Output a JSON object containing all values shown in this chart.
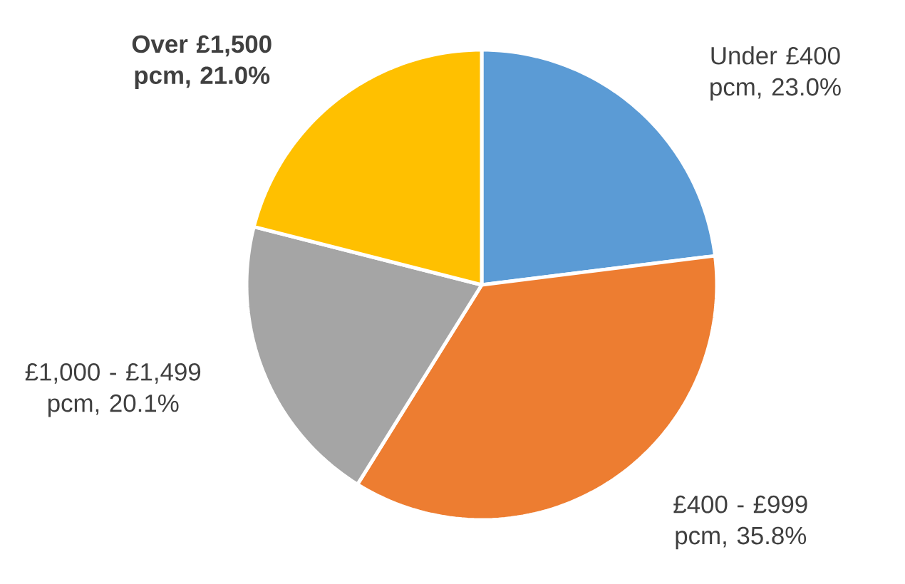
{
  "chart_data": {
    "type": "pie",
    "categories": [
      null,
      null,
      null,
      null
    ],
    "values": [
      23.0,
      35.8,
      20.1,
      21.0
    ],
    "value_labels": [
      "Under £400 pcm, 23.0%",
      "£400 - £999 pcm, 35.8%",
      "£1,000 - £1,499 pcm, 20.1%",
      "**Over £1,500 pcm, 21.0%**"
    ],
    "colors": [
      "#5b9bd5",
      "#ed7d31",
      "#a5a5a5",
      "#ffc000"
    ]
  }
}
